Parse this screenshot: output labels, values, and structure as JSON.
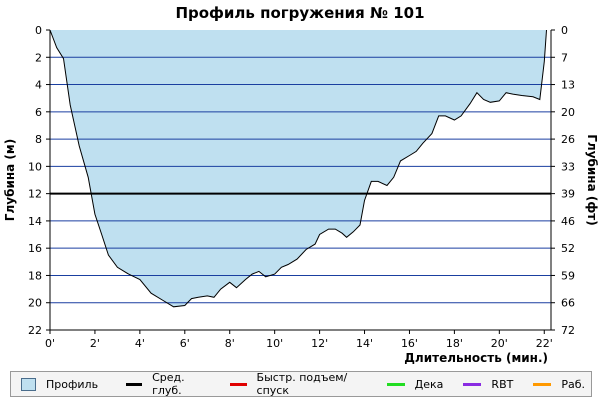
{
  "chart_data": {
    "type": "area",
    "title": "Профиль погружения № 101",
    "xlabel": "Длительность (мин.)",
    "ylabel_left": "Глубина (м)",
    "ylabel_right": "Глубина (фт)",
    "xlim": [
      0,
      22.3
    ],
    "ylim": [
      0,
      22
    ],
    "y_inverted": true,
    "grid": true,
    "x_ticks": [
      0,
      2,
      4,
      6,
      8,
      10,
      12,
      14,
      16,
      18,
      20,
      22
    ],
    "x_tick_labels": [
      "0'",
      "2'",
      "4'",
      "6'",
      "8'",
      "10'",
      "12'",
      "14'",
      "16'",
      "18'",
      "20'",
      "22'"
    ],
    "y_ticks_left": [
      0,
      2,
      4,
      6,
      8,
      10,
      12,
      14,
      16,
      18,
      20,
      22
    ],
    "y_ticks_right_labels": [
      "0",
      "7",
      "13",
      "20",
      "26",
      "33",
      "39",
      "46",
      "52",
      "59",
      "66",
      "72"
    ],
    "avg_depth": 12.0,
    "series": [
      {
        "name": "Профиль",
        "x": [
          0,
          0.3,
          0.6,
          0.9,
          1.3,
          1.7,
          2.0,
          2.3,
          2.6,
          3.0,
          3.5,
          4.0,
          4.5,
          5.0,
          5.5,
          6.0,
          6.3,
          6.6,
          7.0,
          7.3,
          7.6,
          8.0,
          8.3,
          8.7,
          9.0,
          9.3,
          9.6,
          10.0,
          10.3,
          10.6,
          11.0,
          11.4,
          11.8,
          12.0,
          12.4,
          12.7,
          13.0,
          13.2,
          13.5,
          13.8,
          14.0,
          14.3,
          14.6,
          15.0,
          15.3,
          15.6,
          16.0,
          16.3,
          16.6,
          17.0,
          17.3,
          17.6,
          18.0,
          18.3,
          18.7,
          19.0,
          19.3,
          19.6,
          20.0,
          20.3,
          20.6,
          21.0,
          21.5,
          21.8,
          22.0,
          22.1
        ],
        "y": [
          0,
          1.3,
          2.1,
          5.5,
          8.5,
          10.8,
          13.5,
          15.0,
          16.5,
          17.4,
          17.9,
          18.3,
          19.3,
          19.8,
          20.3,
          20.2,
          19.7,
          19.6,
          19.5,
          19.6,
          19.0,
          18.5,
          18.9,
          18.3,
          17.9,
          17.7,
          18.1,
          17.9,
          17.4,
          17.2,
          16.8,
          16.1,
          15.7,
          15.0,
          14.6,
          14.6,
          14.9,
          15.2,
          14.8,
          14.3,
          12.5,
          11.1,
          11.1,
          11.4,
          10.8,
          9.6,
          9.2,
          8.9,
          8.3,
          7.6,
          6.3,
          6.3,
          6.6,
          6.3,
          5.4,
          4.6,
          5.1,
          5.3,
          5.2,
          4.6,
          4.7,
          4.8,
          4.9,
          5.1,
          2.3,
          0
        ]
      }
    ],
    "legend": {
      "placement": "bottom",
      "items": [
        {
          "label": "Профиль",
          "color": "#bfe0f0"
        },
        {
          "label": "Сред. глуб.",
          "color": "#000000"
        },
        {
          "label": "Быстр. подъем/спуск",
          "color": "#e00000"
        },
        {
          "label": "Дека",
          "color": "#22dd22"
        },
        {
          "label": "RBT",
          "color": "#8a2be2"
        },
        {
          "label": "Раб.",
          "color": "#ff9900"
        }
      ]
    },
    "colors": {
      "fill": "#bfe0f0",
      "outline": "#000000",
      "grid": "#1a3fa0",
      "avg_line": "#000000"
    }
  }
}
